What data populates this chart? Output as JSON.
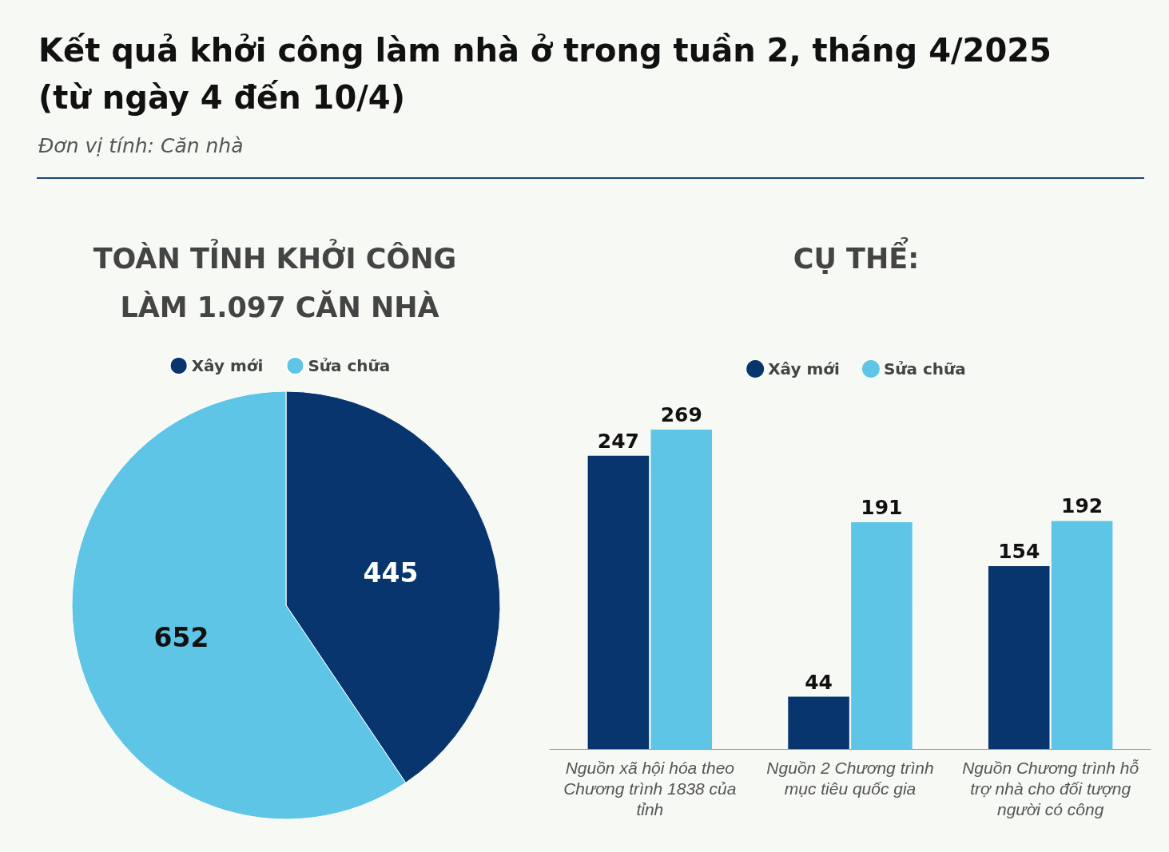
{
  "chart_data": [
    {
      "type": "other",
      "title": "Kết quả khởi công làm nhà ở trong tuần 2, tháng 4/2025 (từ ngày 4 đến 10/4)",
      "subtitle": "Đơn vị tính: Căn nhà"
    },
    {
      "type": "pie",
      "title": "TOÀN TỈNH KHỞI CÔNG LÀM 1.097 CĂN NHÀ",
      "categories": [
        "Xây mới",
        "Sửa chữa"
      ],
      "values": [
        445,
        652
      ],
      "colors": [
        "#08356e",
        "#5ec5e6"
      ],
      "data_labels": true,
      "legend": "top"
    },
    {
      "type": "bar",
      "title": "CỤ THỂ:",
      "categories": [
        "Nguồn xã hội hóa theo Chương trình 1838 của tỉnh",
        "Nguồn 2 Chương trình mục tiêu quốc gia",
        "Nguồn Chương trình hỗ trợ nhà cho đối tượng người có công"
      ],
      "series": [
        {
          "name": "Xây mới",
          "color": "#08356e",
          "values": [
            247,
            44,
            154
          ]
        },
        {
          "name": "Sửa chữa",
          "color": "#5ec5e6",
          "values": [
            269,
            191,
            192
          ]
        }
      ],
      "data_labels": true,
      "legend": "top"
    }
  ]
}
